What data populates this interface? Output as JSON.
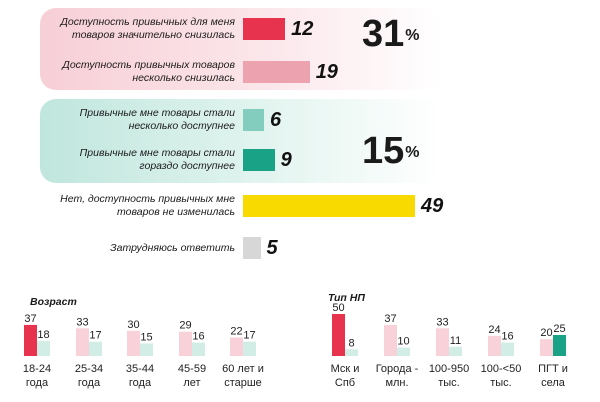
{
  "colors": {
    "strong_decrease": "#e8334f",
    "slight_decrease": "#eca3af",
    "slight_increase": "#82cdbd",
    "strong_increase": "#1aa286",
    "no_change": "#f8d900",
    "unsure": "#d7d7d7",
    "age_first": "#e8334f",
    "age_other": "#f9d1d8",
    "series_b": "#d1ede6",
    "series_b_strong": "#1aa286",
    "negative_total": "#e31c3d",
    "positive_total": "#14a07f",
    "neg_box": "#f7cfd6",
    "pos_box": "#bfe6dd"
  },
  "totals": {
    "negative": {
      "value": "31",
      "unit": "%"
    },
    "positive": {
      "value": "15",
      "unit": "%"
    }
  },
  "chart_data": [
    {
      "type": "bar",
      "orientation": "horizontal",
      "categories": [
        "Доступность привычных для меня товаров значительно снизилась",
        "Доступность привычных товаров несколько снизилась",
        "Привычные мне товары стали несколько доступнее",
        "Привычные мне товары стали гораздо доступнее",
        "Нет, доступность привычных мне товаров не изменилась",
        "Затрудняюсь ответить"
      ],
      "label_lines": [
        [
          "Доступность привычных для меня",
          "товаров значительно снизилась"
        ],
        [
          "Доступность привычных товаров",
          "несколько снизилась"
        ],
        [
          "Привычные мне товары стали",
          "несколько доступнее"
        ],
        [
          "Привычные мне товары стали",
          "гораздо доступнее"
        ],
        [
          "Нет, доступность привычных мне",
          "товаров не изменилась"
        ],
        [
          "Затрудняюсь ответить"
        ]
      ],
      "values": [
        12,
        19,
        6,
        9,
        49,
        5
      ],
      "xlim": [
        0,
        49
      ]
    },
    {
      "type": "bar",
      "title": "Возраст",
      "categories": [
        "18-24 года",
        "25-34 года",
        "35-44 года",
        "45-59 лет",
        "60 лет и старше"
      ],
      "category_lines": [
        [
          "18-24",
          "года"
        ],
        [
          "25-34",
          "года"
        ],
        [
          "35-44",
          "года"
        ],
        [
          "45-59",
          "лет"
        ],
        [
          "60 лет и",
          "старше"
        ]
      ],
      "series": [
        {
          "values": [
            37,
            33,
            30,
            29,
            22
          ]
        },
        {
          "values": [
            18,
            17,
            15,
            16,
            17
          ]
        }
      ],
      "ylim": [
        0,
        50
      ]
    },
    {
      "type": "bar",
      "title": "Тип НП",
      "categories": [
        "Мск и Спб",
        "Города - млн.",
        "100-950 тыс.",
        "100-<50 тыс.",
        "ПГТ и села"
      ],
      "category_lines": [
        [
          "Мск и",
          "Спб"
        ],
        [
          "Города -",
          "млн."
        ],
        [
          "100-950",
          "тыс."
        ],
        [
          "100-<50",
          "тыс."
        ],
        [
          "ПГТ и",
          "села"
        ]
      ],
      "series": [
        {
          "values": [
            50,
            37,
            33,
            24,
            20
          ]
        },
        {
          "values": [
            8,
            10,
            11,
            16,
            25
          ]
        }
      ],
      "ylim": [
        0,
        50
      ]
    }
  ]
}
